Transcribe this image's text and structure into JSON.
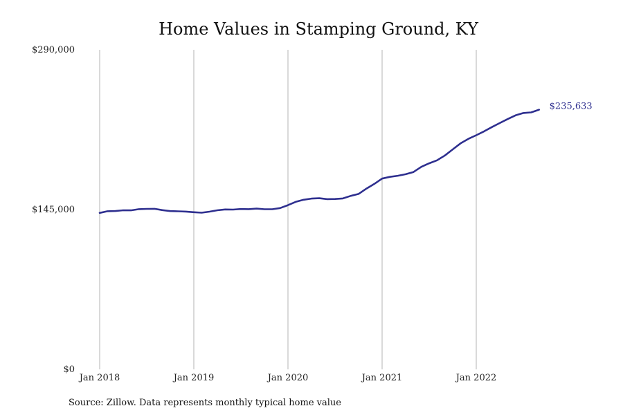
{
  "chart_data": {
    "type": "line",
    "title": "Home Values in Stamping Ground, KY",
    "xlabel": "",
    "ylabel": "",
    "source": "Source: Zillow. Data represents monthly typical home value",
    "ylim": [
      0,
      290000
    ],
    "y_ticks": [
      {
        "value": 0,
        "label": "$0"
      },
      {
        "value": 145000,
        "label": "$145,000"
      },
      {
        "value": 290000,
        "label": "$290,000"
      }
    ],
    "x_ticks": [
      {
        "month_index": 0,
        "label": "Jan 2018"
      },
      {
        "month_index": 12,
        "label": "Jan 2019"
      },
      {
        "month_index": 24,
        "label": "Jan 2020"
      },
      {
        "month_index": 36,
        "label": "Jan 2021"
      },
      {
        "month_index": 48,
        "label": "Jan 2022"
      }
    ],
    "grid": "vertical",
    "line_color": "#2e2f8f",
    "end_label": "$235,633",
    "series": [
      {
        "x": [
          "2018-01",
          "2018-02",
          "2018-03",
          "2018-04",
          "2018-05",
          "2018-06",
          "2018-07",
          "2018-08",
          "2018-09",
          "2018-10",
          "2018-11",
          "2018-12",
          "2019-01",
          "2019-02",
          "2019-03",
          "2019-04",
          "2019-05",
          "2019-06",
          "2019-07",
          "2019-08",
          "2019-09",
          "2019-10",
          "2019-11",
          "2019-12",
          "2020-01",
          "2020-02",
          "2020-03",
          "2020-04",
          "2020-05",
          "2020-06",
          "2020-07",
          "2020-08",
          "2020-09",
          "2020-10",
          "2020-11",
          "2020-12",
          "2021-01",
          "2021-02",
          "2021-03",
          "2021-04",
          "2021-05",
          "2021-06",
          "2021-07",
          "2021-08",
          "2021-09",
          "2021-10",
          "2021-11",
          "2021-12",
          "2022-01",
          "2022-02",
          "2022-03",
          "2022-04",
          "2022-05",
          "2022-06",
          "2022-07",
          "2022-08",
          "2022-09"
        ],
        "values": [
          142000,
          143500,
          143700,
          144400,
          144300,
          145400,
          145600,
          145700,
          144500,
          143600,
          143400,
          143200,
          142600,
          142200,
          143100,
          144400,
          145100,
          145000,
          145500,
          145400,
          145900,
          145300,
          145300,
          146400,
          149000,
          152000,
          153900,
          155000,
          155300,
          154500,
          154600,
          155100,
          157400,
          159200,
          164000,
          168300,
          173100,
          174700,
          175700,
          177100,
          179100,
          183800,
          187000,
          189700,
          194100,
          199600,
          205100,
          209200,
          212500,
          216000,
          219900,
          223500,
          227100,
          230500,
          232600,
          233200,
          235633
        ]
      }
    ]
  }
}
